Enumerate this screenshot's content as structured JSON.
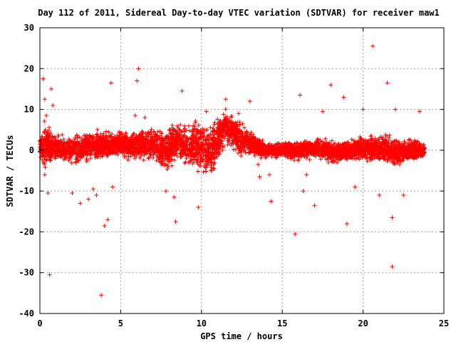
{
  "chart_data": {
    "type": "scatter",
    "title": "Day 112 of 2011, Sidereal Day-to-day VTEC variation (SDTVAR) for receiver maw1",
    "xlabel": "GPS time / hours",
    "ylabel": "SDTVAR / TECUs",
    "xlim": [
      0,
      25
    ],
    "ylim": [
      -40,
      30
    ],
    "xticks": [
      0,
      5,
      10,
      15,
      20,
      25
    ],
    "yticks": [
      -40,
      -30,
      -20,
      -10,
      0,
      10,
      20,
      30
    ],
    "grid": true,
    "marker": "plus",
    "color": "#ff0000",
    "series": [
      {
        "name": "",
        "envelope": [
          {
            "x": 0.0,
            "lo": -3,
            "hi": 4
          },
          {
            "x": 0.3,
            "lo": -5,
            "hi": 8
          },
          {
            "x": 1.0,
            "lo": -3,
            "hi": 4
          },
          {
            "x": 2.0,
            "lo": -4,
            "hi": 4
          },
          {
            "x": 3.0,
            "lo": -3,
            "hi": 5
          },
          {
            "x": 4.0,
            "lo": -3,
            "hi": 5
          },
          {
            "x": 5.0,
            "lo": -2,
            "hi": 5
          },
          {
            "x": 6.0,
            "lo": -3,
            "hi": 5
          },
          {
            "x": 7.0,
            "lo": -3,
            "hi": 6
          },
          {
            "x": 7.8,
            "lo": -6,
            "hi": 6
          },
          {
            "x": 8.5,
            "lo": -2,
            "hi": 7
          },
          {
            "x": 9.0,
            "lo": -4,
            "hi": 7
          },
          {
            "x": 10.0,
            "lo": -6,
            "hi": 8
          },
          {
            "x": 10.5,
            "lo": -8,
            "hi": 7
          },
          {
            "x": 11.5,
            "lo": 1,
            "hi": 10
          },
          {
            "x": 12.5,
            "lo": -2,
            "hi": 7
          },
          {
            "x": 14.0,
            "lo": -2,
            "hi": 2
          },
          {
            "x": 15.0,
            "lo": -2,
            "hi": 2
          },
          {
            "x": 16.0,
            "lo": -3,
            "hi": 3
          },
          {
            "x": 17.0,
            "lo": -2,
            "hi": 3
          },
          {
            "x": 18.0,
            "lo": -4,
            "hi": 3
          },
          {
            "x": 19.0,
            "lo": -3,
            "hi": 3
          },
          {
            "x": 20.0,
            "lo": -3,
            "hi": 4
          },
          {
            "x": 21.0,
            "lo": -3,
            "hi": 4
          },
          {
            "x": 22.0,
            "lo": -5,
            "hi": 4
          },
          {
            "x": 23.0,
            "lo": -3,
            "hi": 3
          },
          {
            "x": 23.8,
            "lo": -2,
            "hi": 2
          }
        ],
        "outliers": [
          [
            0.2,
            17.5
          ],
          [
            0.3,
            12.5
          ],
          [
            0.4,
            8.5
          ],
          [
            0.5,
            -10.5
          ],
          [
            0.6,
            -30.5
          ],
          [
            0.7,
            15
          ],
          [
            0.8,
            11
          ],
          [
            0.3,
            -6
          ],
          [
            2.0,
            -10.5
          ],
          [
            2.5,
            -13
          ],
          [
            3.0,
            -12
          ],
          [
            3.3,
            -9.5
          ],
          [
            3.5,
            -11
          ],
          [
            3.8,
            -35.5
          ],
          [
            4.0,
            -18.5
          ],
          [
            4.2,
            -17
          ],
          [
            4.4,
            16.5
          ],
          [
            4.5,
            -9
          ],
          [
            5.9,
            8.5
          ],
          [
            6.0,
            17
          ],
          [
            6.1,
            20
          ],
          [
            6.5,
            8
          ],
          [
            7.8,
            -10
          ],
          [
            8.3,
            -11.5
          ],
          [
            8.4,
            -17.5
          ],
          [
            8.8,
            14.5
          ],
          [
            9.8,
            -14
          ],
          [
            10.3,
            9.5
          ],
          [
            11.5,
            12.5
          ],
          [
            12.3,
            9
          ],
          [
            13.0,
            12
          ],
          [
            13.6,
            -6.5
          ],
          [
            14.2,
            -6
          ],
          [
            14.3,
            -12.5
          ],
          [
            15.8,
            -20.5
          ],
          [
            16.1,
            13.5
          ],
          [
            16.3,
            -10
          ],
          [
            17.0,
            -13.5
          ],
          [
            18.0,
            16
          ],
          [
            18.8,
            13
          ],
          [
            19.0,
            -18
          ],
          [
            20.6,
            25.5
          ],
          [
            21.5,
            16.5
          ],
          [
            21.8,
            -16.5
          ],
          [
            21.8,
            -28.5
          ],
          [
            22.5,
            -11
          ],
          [
            23.5,
            9.5
          ],
          [
            20.0,
            10
          ],
          [
            19.5,
            -9
          ],
          [
            22.0,
            10
          ],
          [
            21.0,
            -11
          ],
          [
            13.5,
            -3.5
          ],
          [
            12.8,
            4.5
          ],
          [
            17.5,
            9.5
          ],
          [
            16.5,
            -6
          ]
        ]
      }
    ]
  }
}
